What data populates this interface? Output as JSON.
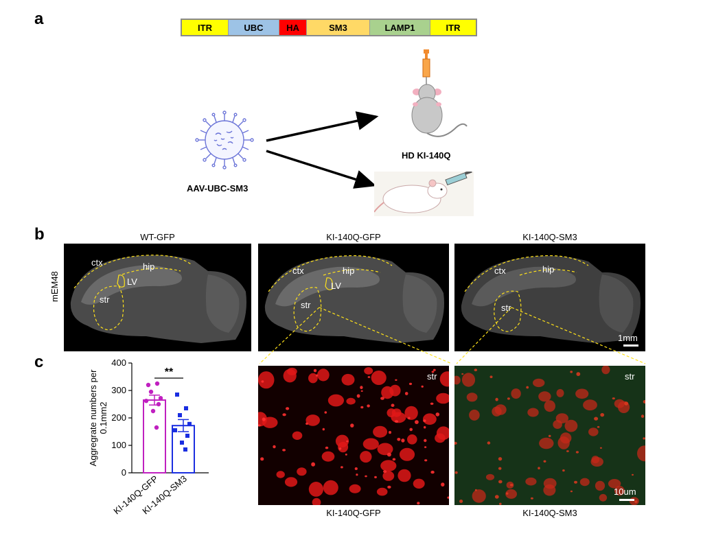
{
  "panel_a": {
    "letter": "a",
    "construct": [
      {
        "label": "ITR",
        "color": "#ffff00"
      },
      {
        "label": "UBC",
        "color": "#9dc3e6"
      },
      {
        "label": "HA",
        "color": "#ff0000"
      },
      {
        "label": "SM3",
        "color": "#ffd966"
      },
      {
        "label": "LAMP1",
        "color": "#a9d18e"
      },
      {
        "label": "ITR",
        "color": "#ffff00"
      }
    ],
    "virus_label": "AAV-UBC-SM3",
    "mouse_label": "HD KI-140Q"
  },
  "panel_b": {
    "letter": "b",
    "row_label": "mEM48",
    "images": [
      {
        "title": "WT-GFP",
        "regions": [
          "ctx",
          "hip",
          "LV",
          "str"
        ]
      },
      {
        "title": "KI-140Q-GFP",
        "regions": [
          "ctx",
          "hip",
          "LV",
          "str"
        ]
      },
      {
        "title": "KI-140Q-SM3",
        "regions": [
          "ctx",
          "hip",
          "str"
        ]
      }
    ],
    "scale_bar": "1mm"
  },
  "panel_c": {
    "letter": "c",
    "micrographs": [
      {
        "label": "KI-140Q-GFP",
        "region": "str"
      },
      {
        "label": "KI-140Q-SM3",
        "region": "str"
      }
    ],
    "scale_bar": "10um"
  },
  "chart_data": {
    "type": "bar",
    "categories": [
      "KI-140Q-GFP",
      "KI-140Q-SM3"
    ],
    "values": [
      265,
      172
    ],
    "errors": [
      18,
      22
    ],
    "points": [
      [
        320,
        325,
        295,
        272,
        262,
        250,
        225,
        165
      ],
      [
        285,
        235,
        210,
        178,
        155,
        135,
        110,
        85
      ]
    ],
    "colors": [
      "#c020c0",
      "#1a2ee0"
    ],
    "ylabel": "Aggregrate numbers per 0.1mm2",
    "ylim": [
      0,
      400
    ],
    "yticks": [
      0,
      100,
      200,
      300,
      400
    ],
    "significance": "**"
  }
}
